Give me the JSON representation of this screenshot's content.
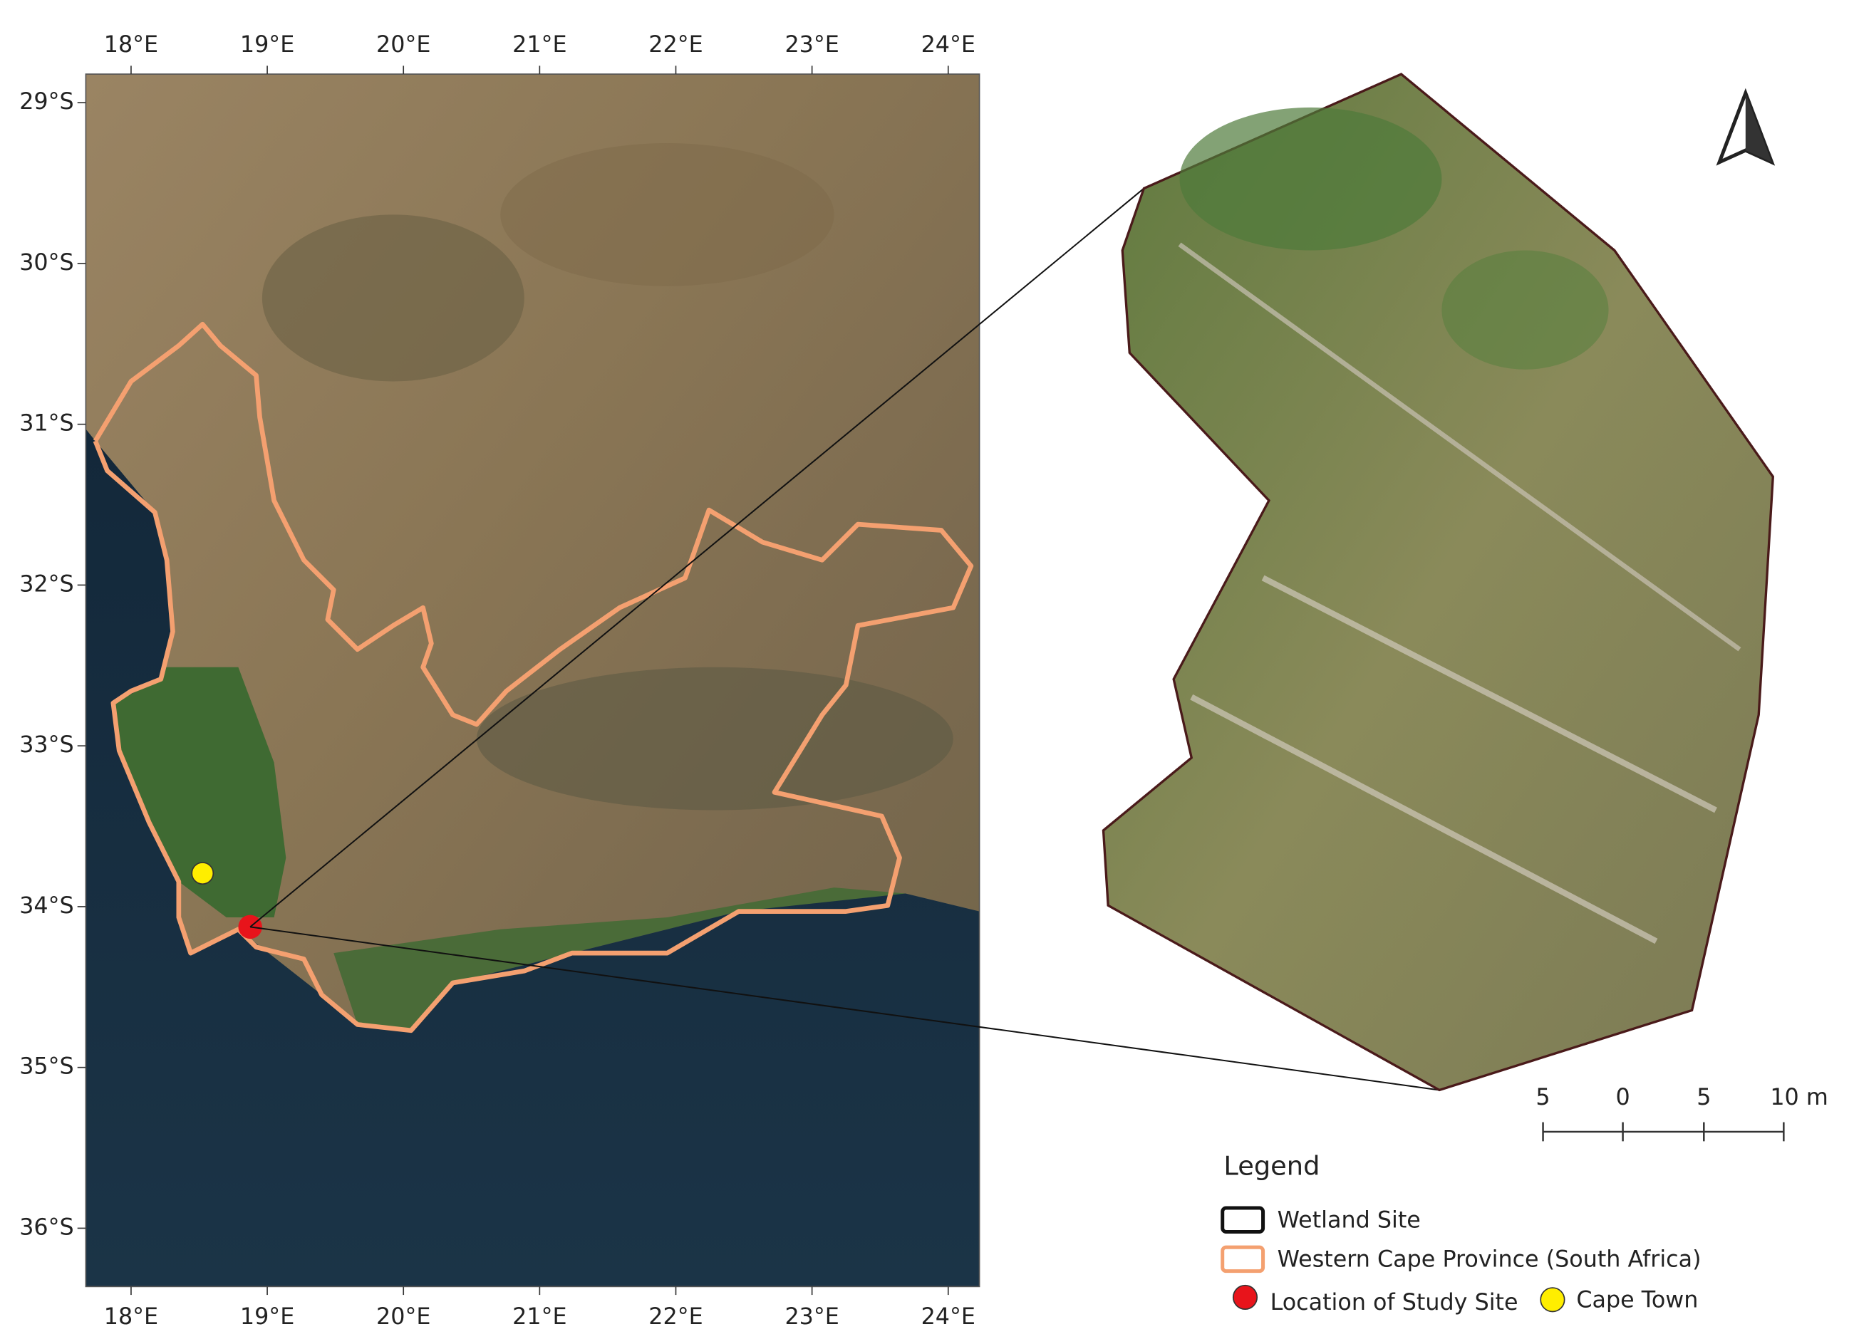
{
  "map": {
    "lon_ticks": [
      "18°E",
      "19°E",
      "20°E",
      "21°E",
      "22°E",
      "23°E",
      "24°E"
    ],
    "lat_ticks": [
      "29°S",
      "30°S",
      "31°S",
      "32°S",
      "33°S",
      "34°S",
      "35°S",
      "36°S"
    ]
  },
  "scale_bar": {
    "labels": [
      "5",
      "0",
      "5",
      "10 m"
    ]
  },
  "legend": {
    "title": "Legend",
    "wetland_site": "Wetland Site",
    "province": "Western Cape Province (South Africa)",
    "study_site": "Location of Study Site",
    "cape_town": "Cape Town"
  }
}
